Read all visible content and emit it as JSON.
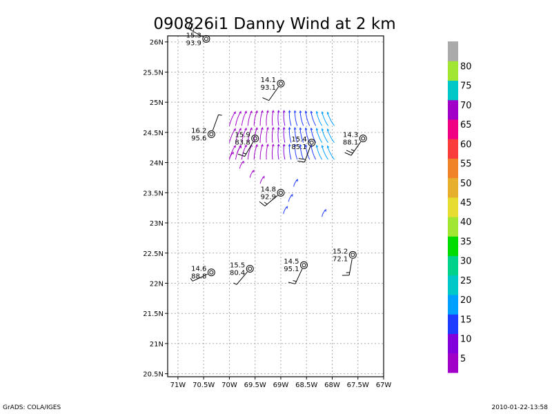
{
  "chart_data": {
    "type": "map",
    "title": "090826i1 Danny Wind at 2 km",
    "x_ticks": [
      "71W",
      "70.5W",
      "70W",
      "69.5W",
      "69W",
      "68.5W",
      "68W",
      "67.5W",
      "67W"
    ],
    "y_ticks": [
      "26N",
      "25.5N",
      "25N",
      "24.5N",
      "24N",
      "23.5N",
      "23N",
      "22.5N",
      "22N",
      "21.5N",
      "21N",
      "20.5N"
    ],
    "xlim": [
      -71.2,
      -67
    ],
    "ylim": [
      20.45,
      26.1
    ],
    "grid": true,
    "stations": [
      {
        "lon": -70.45,
        "lat": 26.05,
        "label1": "15.3",
        "label2": "93.9",
        "dir": 300,
        "speed": 25
      },
      {
        "lon": -69.0,
        "lat": 25.31,
        "label1": "14.1",
        "label2": "93.1",
        "dir": 215,
        "speed": 10
      },
      {
        "lon": -70.35,
        "lat": 24.47,
        "label1": "16.2",
        "label2": "95.6",
        "dir": 20,
        "speed": 5
      },
      {
        "lon": -69.5,
        "lat": 24.4,
        "label1": "15.9",
        "label2": "83.8",
        "dir": 210,
        "speed": 15
      },
      {
        "lon": -68.4,
        "lat": 24.33,
        "label1": "15.4",
        "label2": "85.1",
        "dir": 200,
        "speed": 20
      },
      {
        "lon": -67.4,
        "lat": 24.4,
        "label1": "14.3",
        "label2": "88.1",
        "dir": 215,
        "speed": 25
      },
      {
        "lon": -69.0,
        "lat": 23.5,
        "label1": "14.8",
        "label2": "92.9",
        "dir": 230,
        "speed": 15
      },
      {
        "lon": -67.6,
        "lat": 22.47,
        "label1": "15.2",
        "label2": "72.1",
        "dir": 190,
        "speed": 15
      },
      {
        "lon": -70.35,
        "lat": 22.18,
        "label1": "14.6",
        "label2": "88.8",
        "dir": 245,
        "speed": 5
      },
      {
        "lon": -69.6,
        "lat": 22.24,
        "label1": "15.5",
        "label2": "80.4",
        "dir": 220,
        "speed": 5
      },
      {
        "lon": -68.55,
        "lat": 22.3,
        "label1": "14.5",
        "label2": "95.1",
        "dir": 205,
        "speed": 15
      }
    ],
    "colorbar": {
      "labels": [
        "5",
        "10",
        "15",
        "20",
        "25",
        "30",
        "35",
        "40",
        "45",
        "50",
        "55",
        "60",
        "65",
        "70",
        "75",
        "80"
      ],
      "colors": [
        "#a000c8",
        "#8200dc",
        "#1e3cff",
        "#00a0ff",
        "#00c8c8",
        "#00d28c",
        "#00dc00",
        "#a0e632",
        "#e6dc32",
        "#e6af2d",
        "#f08228",
        "#fa3c3c",
        "#f00082",
        "#a000c8",
        "#00c8c8",
        "#a0e632",
        "#aaaaaa"
      ]
    }
  },
  "footer": {
    "left": "GrADS: COLA/IGES",
    "right": "2010-01-22-13:58"
  }
}
